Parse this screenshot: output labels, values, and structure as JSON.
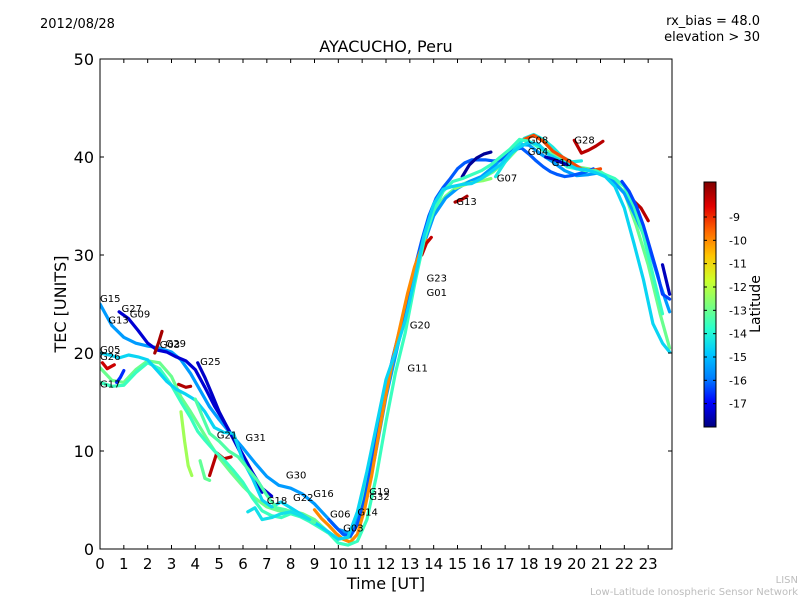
{
  "header": {
    "date": "2012/08/28",
    "rx_bias": "rx_bias = 48.0",
    "elevation": "elevation > 30"
  },
  "footer": {
    "short": "LISN",
    "long": "Low-Latitude Ionospheric Sensor Network"
  },
  "chart_data": {
    "type": "scatter",
    "title": "AYACUCHO, Peru",
    "xlabel": "Time [UT]",
    "ylabel": "TEC [UNITS]",
    "xlim": [
      0,
      24
    ],
    "ylim": [
      0,
      50
    ],
    "xticks": [
      0,
      1,
      2,
      3,
      4,
      5,
      6,
      7,
      8,
      9,
      10,
      11,
      12,
      13,
      14,
      15,
      16,
      17,
      18,
      19,
      20,
      21,
      22,
      23
    ],
    "yticks": [
      0,
      10,
      20,
      30,
      40,
      50
    ],
    "colorbar": {
      "label": "Latitude",
      "range": [
        -18,
        -7.5
      ],
      "ticks": [
        -9,
        -10,
        -11,
        -12,
        -13,
        -14,
        -15,
        -16,
        -17
      ],
      "colors": [
        "#00007f",
        "#0000ff",
        "#007fff",
        "#00c8ff",
        "#29ffce",
        "#7dff7a",
        "#ceff29",
        "#ffc400",
        "#ff6600",
        "#e30000",
        "#7f0000"
      ]
    },
    "series": [
      {
        "lat": -13.0,
        "x": [
          0,
          0.5,
          1,
          1.5,
          2,
          2.5,
          3,
          3.4,
          3.8,
          4.2,
          4.6,
          5,
          5.5,
          6,
          6.5,
          7,
          7.5,
          8,
          8.5,
          9,
          9.5,
          10,
          10.5,
          11,
          11.5,
          12,
          12.5,
          13,
          13.5,
          14,
          14.5,
          15,
          15.5,
          16,
          16.5,
          17,
          17.5,
          18,
          18.5,
          19,
          19.5,
          20,
          20.5,
          21,
          21.5,
          22,
          22.5,
          23,
          23.5,
          23.9
        ],
        "y": [
          18.5,
          17.2,
          17.0,
          18.3,
          19.2,
          19.0,
          17.6,
          15.5,
          14.0,
          12.4,
          10.8,
          9.3,
          7.8,
          6.4,
          5.2,
          4.3,
          3.9,
          3.9,
          3.6,
          3.0,
          1.9,
          1.0,
          1.2,
          4.5,
          10.0,
          16.5,
          21.5,
          26.5,
          31.0,
          34.5,
          36.0,
          37.0,
          37.5,
          37.8,
          38.5,
          39.5,
          40.8,
          41.6,
          41.0,
          40.3,
          39.6,
          39.0,
          38.8,
          38.5,
          37.7,
          36.4,
          33.0,
          29.0,
          24.0,
          20.5
        ]
      },
      {
        "lat": -15.5,
        "x": [
          0,
          0.5,
          1,
          1.5,
          2,
          2.5,
          3,
          3.4,
          3.8,
          4.2,
          4.6,
          5,
          5.5,
          6,
          6.5,
          7,
          7.5,
          8,
          8.5,
          9,
          9.5,
          10,
          10.5,
          11,
          11.5,
          12,
          12.5,
          13,
          13.5,
          14,
          14.5,
          15,
          15.5,
          16,
          16.5,
          17,
          17.5,
          18,
          18.5,
          19,
          19.5,
          20,
          20.5,
          21,
          21.5,
          22,
          22.5,
          23,
          23.5,
          23.9
        ],
        "y": [
          25.0,
          22.8,
          21.6,
          21.0,
          20.7,
          20.5,
          20.1,
          19.3,
          17.9,
          16.2,
          14.5,
          13.2,
          11.7,
          10.3,
          8.8,
          7.4,
          6.5,
          6.2,
          5.6,
          4.6,
          3.3,
          2.0,
          1.6,
          4.2,
          9.0,
          15.5,
          20.8,
          25.8,
          30.5,
          34.0,
          35.8,
          36.8,
          37.5,
          38.0,
          39.0,
          40.2,
          41.3,
          41.2,
          40.3,
          39.5,
          38.6,
          38.1,
          38.2,
          38.4,
          37.6,
          36.3,
          33.8,
          31.0,
          27.0,
          24.2
        ]
      },
      {
        "lat": -17.3,
        "x": [
          0.8,
          1.2,
          1.6,
          2.0,
          2.4,
          2.8,
          3.2,
          3.6,
          4.0,
          4.4,
          4.8,
          5.2,
          5.6,
          6.0,
          6.4,
          6.8,
          7.2
        ],
        "y": [
          24.2,
          23.5,
          22.3,
          21.0,
          20.3,
          20.1,
          19.6,
          19.2,
          18.3,
          16.5,
          14.6,
          13.0,
          11.3,
          9.6,
          7.8,
          6.2,
          5.4
        ]
      },
      {
        "lat": -17.4,
        "x": [
          4.1,
          4.4,
          4.7,
          5.0,
          5.3,
          5.6,
          5.9,
          6.2,
          6.5,
          6.8
        ],
        "y": [
          19.0,
          17.5,
          15.8,
          14.0,
          12.6,
          11.2,
          9.8,
          8.5,
          7.0,
          5.8
        ]
      },
      {
        "lat": -16.2,
        "x": [
          9.6,
          9.9,
          10.2,
          10.5,
          10.8,
          11.1,
          11.4,
          11.7,
          12.0,
          12.3,
          12.6,
          12.9,
          13.2,
          13.5,
          13.8,
          14.1,
          14.4,
          14.7,
          15.0,
          15.3,
          15.6,
          15.9,
          16.2,
          16.5,
          16.8,
          17.1,
          17.4,
          17.7,
          18.0,
          18.3,
          18.6,
          18.9,
          19.2,
          19.5,
          19.8,
          20.1,
          20.4,
          20.7
        ],
        "y": [
          3.0,
          2.2,
          1.5,
          1.3,
          2.5,
          5.0,
          8.8,
          12.8,
          16.5,
          19.7,
          22.6,
          25.5,
          28.6,
          31.5,
          34.0,
          35.8,
          36.9,
          37.8,
          38.8,
          39.4,
          39.7,
          39.7,
          39.7,
          39.6,
          39.7,
          40.2,
          40.8,
          40.9,
          40.3,
          39.6,
          39.0,
          38.5,
          38.2,
          38.0,
          38.1,
          38.3,
          38.5,
          38.8
        ]
      },
      {
        "lat": -17.8,
        "x": [
          15.2,
          15.5,
          15.8,
          16.1,
          16.4
        ],
        "y": [
          38.0,
          39.2,
          39.9,
          40.3,
          40.5
        ]
      },
      {
        "lat": -14.2,
        "x": [
          16.6,
          17.0,
          17.4,
          17.8,
          18.2,
          18.6,
          19.0,
          19.4,
          19.8,
          20.2
        ],
        "y": [
          38.0,
          39.5,
          40.8,
          41.9,
          42.3,
          41.8,
          41.0,
          40.0,
          39.5,
          39.6
        ]
      },
      {
        "lat": -12.6,
        "x": [
          14.9,
          15.2,
          15.5,
          15.8,
          16.1,
          16.4
        ],
        "y": [
          36.8,
          37.1,
          37.3,
          37.5,
          37.6,
          37.8
        ]
      },
      {
        "lat": -10.0,
        "x": [
          9.0,
          9.3,
          9.6,
          9.9,
          10.2,
          10.5,
          10.8,
          11.1,
          11.4,
          11.7,
          12.0,
          12.3,
          12.6,
          12.9,
          13.2,
          13.5,
          13.7
        ],
        "y": [
          4.0,
          3.1,
          2.4,
          1.6,
          1.0,
          0.7,
          1.5,
          4.0,
          7.5,
          11.8,
          15.8,
          19.5,
          22.8,
          26.0,
          28.8,
          30.8,
          31.5
        ]
      },
      {
        "lat": -8.2,
        "x": [
          13.5,
          13.7,
          13.9
        ],
        "y": [
          30.0,
          31.2,
          31.8
        ]
      },
      {
        "lat": -9.3,
        "x": [
          17.8,
          18.2,
          18.6,
          19.0,
          19.4,
          19.8,
          20.2,
          20.6,
          21.0
        ],
        "y": [
          41.8,
          42.2,
          41.6,
          40.6,
          40.0,
          39.4,
          38.8,
          38.6,
          38.8
        ]
      },
      {
        "lat": -8.1,
        "x": [
          19.9,
          20.2,
          20.5,
          20.8,
          21.1
        ],
        "y": [
          41.7,
          40.4,
          40.7,
          41.1,
          41.6
        ]
      },
      {
        "lat": -7.9,
        "x": [
          14.9,
          15.2,
          15.4
        ],
        "y": [
          35.4,
          35.7,
          36.0
        ]
      },
      {
        "lat": -7.9,
        "x": [
          2.3,
          2.45,
          2.6
        ],
        "y": [
          20.0,
          21.0,
          22.2
        ]
      },
      {
        "lat": -8.0,
        "x": [
          3.3,
          3.6,
          3.8
        ],
        "y": [
          16.8,
          16.5,
          16.6
        ]
      },
      {
        "lat": -8.3,
        "x": [
          0.1,
          0.3,
          0.6
        ],
        "y": [
          19.0,
          18.4,
          18.8
        ]
      },
      {
        "lat": -8.1,
        "x": [
          22.4,
          22.7,
          23.0
        ],
        "y": [
          35.5,
          34.8,
          33.5
        ]
      },
      {
        "lat": -8.1,
        "x": [
          4.6,
          4.9,
          5.2,
          5.5
        ],
        "y": [
          7.5,
          9.8,
          9.2,
          9.4
        ]
      },
      {
        "lat": -13.6,
        "x": [
          0,
          0.5,
          1,
          1.5,
          2,
          2.5,
          3,
          3.4,
          3.8,
          4.1,
          4.4,
          4.8,
          5.2,
          5.6,
          6.0,
          6.4,
          6.8,
          7.2,
          7.6,
          8.0,
          8.4,
          8.8,
          9.2,
          9.6,
          10.0,
          10.4,
          10.8,
          11.2,
          11.6,
          12.0,
          12.4,
          12.8,
          13.2,
          13.6,
          14.0,
          14.4,
          14.8,
          15.2,
          15.6,
          16.0,
          16.4,
          16.8,
          17.2,
          17.6,
          18.0,
          18.4,
          18.8,
          19.2,
          19.6,
          20.0,
          20.4,
          20.8,
          21.2,
          21.6,
          22.0,
          22.4,
          22.8,
          23.2,
          23.6
        ],
        "y": [
          17.0,
          16.6,
          16.7,
          18.0,
          19.0,
          18.4,
          16.7,
          15.0,
          13.4,
          12.0,
          11.1,
          10.0,
          9.1,
          8.0,
          6.8,
          5.2,
          3.9,
          3.4,
          3.2,
          3.6,
          3.3,
          2.8,
          2.2,
          1.6,
          0.6,
          0.4,
          0.8,
          3.0,
          7.5,
          13.0,
          18.0,
          22.0,
          27.0,
          31.5,
          34.5,
          36.5,
          37.5,
          37.8,
          38.2,
          38.6,
          39.2,
          40.0,
          40.8,
          41.8,
          41.6,
          41.0,
          40.3,
          39.8,
          39.0,
          38.8,
          38.6,
          38.6,
          38.2,
          37.8,
          37.0,
          35.0,
          32.0,
          28.0,
          24.0
        ]
      },
      {
        "lat": -14.6,
        "x": [
          0,
          0.4,
          0.8,
          1.2,
          1.6,
          2.0,
          2.4,
          2.8,
          3.2,
          3.6,
          4.0,
          4.4,
          4.8,
          5.2,
          5.6,
          6.0,
          6.4,
          6.8,
          7.2,
          7.6,
          8.0,
          8.4,
          8.8,
          9.2,
          9.6,
          10.0,
          10.4,
          10.8,
          11.2,
          11.6,
          12.0,
          12.4,
          12.8,
          13.2,
          13.6,
          14.0,
          14.4,
          14.8,
          15.2,
          15.6,
          16.0,
          16.4,
          16.8,
          17.2,
          17.6,
          18.0,
          18.4,
          18.8,
          19.2,
          19.6,
          20.0,
          20.4,
          20.8,
          21.2,
          21.6,
          22.0,
          22.4,
          22.8,
          23.2,
          23.6,
          23.9
        ],
        "y": [
          20.0,
          19.8,
          19.5,
          19.8,
          19.6,
          19.3,
          18.2,
          17.1,
          16.3,
          15.8,
          15.2,
          14.0,
          12.4,
          11.9,
          11.8,
          9.0,
          7.2,
          5.0,
          4.3,
          4.8,
          4.2,
          3.6,
          3.0,
          2.4,
          1.7,
          1.0,
          1.2,
          3.8,
          7.9,
          12.6,
          17.3,
          20.1,
          23.3,
          27.5,
          32.0,
          35.2,
          36.7,
          37.0,
          37.2,
          37.3,
          37.8,
          38.5,
          39.2,
          40.3,
          41.0,
          41.5,
          41.3,
          40.3,
          39.8,
          39.3,
          38.8,
          38.7,
          38.4,
          38.0,
          37.0,
          34.8,
          31.2,
          27.5,
          23.0,
          21.0,
          20.1
        ]
      },
      {
        "lat": -13.3,
        "x": [
          4.0,
          4.3,
          4.6,
          5.0,
          5.4,
          5.8,
          6.2,
          6.6,
          7.0,
          7.4,
          7.8,
          8.2,
          8.6,
          9.0
        ],
        "y": [
          15.3,
          13.5,
          11.8,
          11.0,
          10.0,
          9.4,
          8.2,
          7.0,
          5.5,
          4.2,
          4.0,
          3.6,
          3.2,
          2.7
        ]
      },
      {
        "lat": -14.4,
        "x": [
          6.2,
          6.5,
          6.8,
          7.2,
          7.6,
          8.0,
          8.4,
          8.8
        ],
        "y": [
          3.8,
          4.2,
          3.0,
          3.2,
          3.6,
          3.8,
          3.4,
          3.0
        ]
      },
      {
        "lat": -12.3,
        "x": [
          3.4,
          3.55,
          3.7,
          3.85
        ],
        "y": [
          14.0,
          11.0,
          8.5,
          7.5
        ]
      },
      {
        "lat": -13.1,
        "x": [
          4.2,
          4.4,
          4.6
        ],
        "y": [
          9.0,
          7.2,
          7.0
        ]
      },
      {
        "lat": -16.4,
        "x": [
          21.9,
          22.2,
          22.5,
          22.8,
          23.1,
          23.4,
          23.6,
          23.9
        ],
        "y": [
          37.5,
          36.5,
          35.0,
          33.0,
          30.5,
          28.0,
          26.0,
          25.5
        ]
      },
      {
        "lat": -17.5,
        "x": [
          23.6,
          23.8,
          23.9
        ],
        "y": [
          29.0,
          27.0,
          26.0
        ]
      },
      {
        "lat": -17.6,
        "x": [
          18.7,
          19.0,
          19.3,
          19.6
        ],
        "y": [
          40.0,
          39.8,
          39.5,
          39.2
        ]
      },
      {
        "lat": -16.6,
        "x": [
          0.7,
          0.85,
          1.0
        ],
        "y": [
          17.0,
          17.5,
          18.2
        ]
      }
    ],
    "labels": [
      {
        "text": "G15",
        "x": 0.0,
        "y": 25.2
      },
      {
        "text": "G27",
        "x": 0.9,
        "y": 24.2
      },
      {
        "text": "G13",
        "x": 0.35,
        "y": 23.0
      },
      {
        "text": "G09",
        "x": 1.25,
        "y": 23.6
      },
      {
        "text": "G05",
        "x": 0.0,
        "y": 20.0
      },
      {
        "text": "G26",
        "x": 0.0,
        "y": 19.3
      },
      {
        "text": "G03",
        "x": 2.5,
        "y": 20.5
      },
      {
        "text": "G29",
        "x": 2.75,
        "y": 20.6
      },
      {
        "text": "G25",
        "x": 4.2,
        "y": 18.8
      },
      {
        "text": "G17",
        "x": 0.0,
        "y": 16.5
      },
      {
        "text": "G21",
        "x": 4.9,
        "y": 11.3
      },
      {
        "text": "G31",
        "x": 6.1,
        "y": 11.0
      },
      {
        "text": "G30",
        "x": 7.8,
        "y": 7.2
      },
      {
        "text": "G16",
        "x": 8.95,
        "y": 5.3
      },
      {
        "text": "G18",
        "x": 7.0,
        "y": 4.6
      },
      {
        "text": "G22",
        "x": 8.1,
        "y": 4.9
      },
      {
        "text": "G06",
        "x": 9.65,
        "y": 3.2
      },
      {
        "text": "G03",
        "x": 10.2,
        "y": 1.8
      },
      {
        "text": "G14",
        "x": 10.8,
        "y": 3.4
      },
      {
        "text": "G19",
        "x": 11.3,
        "y": 5.5
      },
      {
        "text": "G32",
        "x": 11.3,
        "y": 5.0
      },
      {
        "text": "G11",
        "x": 12.9,
        "y": 18.1
      },
      {
        "text": "G20",
        "x": 13.0,
        "y": 22.5
      },
      {
        "text": "G23",
        "x": 13.7,
        "y": 27.3
      },
      {
        "text": "G01",
        "x": 13.7,
        "y": 25.8
      },
      {
        "text": "G13",
        "x": 14.95,
        "y": 35.1
      },
      {
        "text": "G07",
        "x": 16.65,
        "y": 37.5
      },
      {
        "text": "G08",
        "x": 17.95,
        "y": 41.4
      },
      {
        "text": "G04",
        "x": 17.95,
        "y": 40.2
      },
      {
        "text": "G10",
        "x": 18.95,
        "y": 39.1
      },
      {
        "text": "G28",
        "x": 19.9,
        "y": 41.4
      }
    ]
  }
}
